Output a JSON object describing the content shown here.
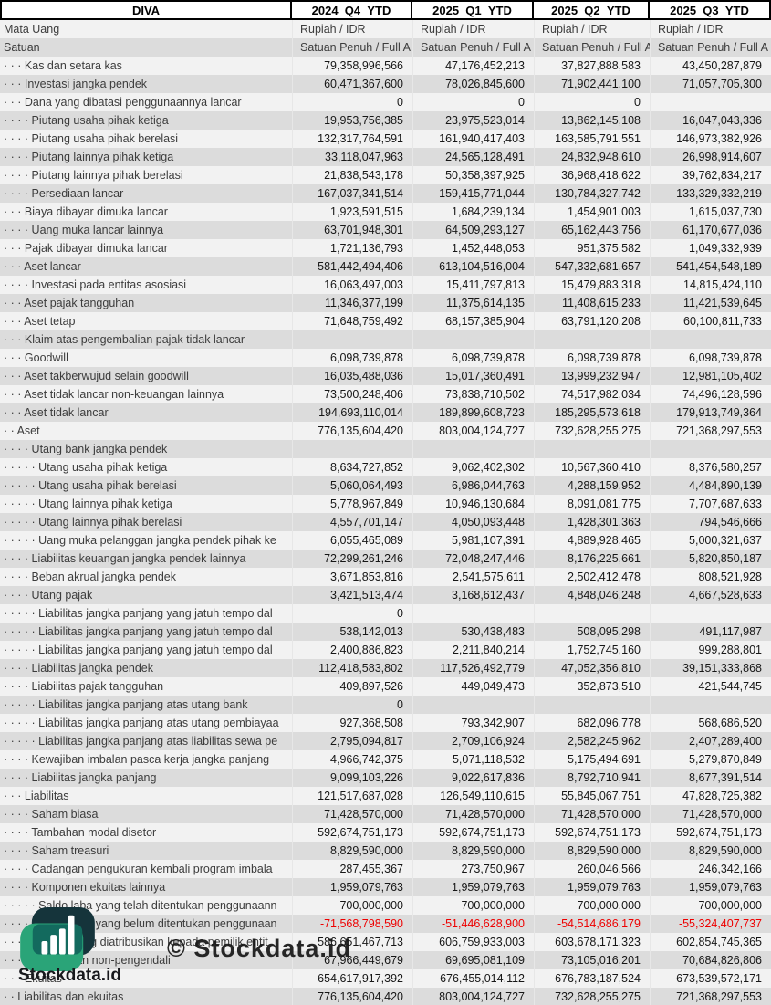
{
  "table": {
    "company": "DIVA",
    "periods": [
      "2024_Q4_YTD",
      "2025_Q1_YTD",
      "2025_Q2_YTD",
      "2025_Q3_YTD"
    ],
    "currency_row_label": "Mata Uang",
    "currency_value": "Rupiah / IDR",
    "unit_row_label": "Satuan",
    "unit_value": "Satuan Penuh / Full A",
    "rows": [
      {
        "indent": 3,
        "label": "Kas dan setara kas",
        "v": [
          "79,358,996,566",
          "47,176,452,213",
          "37,827,888,583",
          "43,450,287,879"
        ]
      },
      {
        "indent": 3,
        "label": "Investasi jangka pendek",
        "v": [
          "60,471,367,600",
          "78,026,845,600",
          "71,902,441,100",
          "71,057,705,300"
        ]
      },
      {
        "indent": 3,
        "label": "Dana yang dibatasi penggunaannya lancar",
        "v": [
          "0",
          "0",
          "0",
          ""
        ]
      },
      {
        "indent": 4,
        "label": "Piutang usaha pihak ketiga",
        "v": [
          "19,953,756,385",
          "23,975,523,014",
          "13,862,145,108",
          "16,047,043,336"
        ]
      },
      {
        "indent": 4,
        "label": "Piutang usaha pihak berelasi",
        "v": [
          "132,317,764,591",
          "161,940,417,403",
          "163,585,791,551",
          "146,973,382,926"
        ]
      },
      {
        "indent": 4,
        "label": "Piutang lainnya pihak ketiga",
        "v": [
          "33,118,047,963",
          "24,565,128,491",
          "24,832,948,610",
          "26,998,914,607"
        ]
      },
      {
        "indent": 4,
        "label": "Piutang lainnya pihak berelasi",
        "v": [
          "21,838,543,178",
          "50,358,397,925",
          "36,968,418,622",
          "39,762,834,217"
        ]
      },
      {
        "indent": 4,
        "label": "Persediaan lancar",
        "v": [
          "167,037,341,514",
          "159,415,771,044",
          "130,784,327,742",
          "133,329,332,219"
        ]
      },
      {
        "indent": 3,
        "label": "Biaya dibayar dimuka lancar",
        "v": [
          "1,923,591,515",
          "1,684,239,134",
          "1,454,901,003",
          "1,615,037,730"
        ]
      },
      {
        "indent": 4,
        "label": "Uang muka lancar lainnya",
        "v": [
          "63,701,948,301",
          "64,509,293,127",
          "65,162,443,756",
          "61,170,677,036"
        ]
      },
      {
        "indent": 3,
        "label": "Pajak dibayar dimuka lancar",
        "v": [
          "1,721,136,793",
          "1,452,448,053",
          "951,375,582",
          "1,049,332,939"
        ]
      },
      {
        "indent": 3,
        "label": "Aset lancar",
        "v": [
          "581,442,494,406",
          "613,104,516,004",
          "547,332,681,657",
          "541,454,548,189"
        ]
      },
      {
        "indent": 4,
        "label": "Investasi pada entitas asosiasi",
        "v": [
          "16,063,497,003",
          "15,411,797,813",
          "15,479,883,318",
          "14,815,424,110"
        ]
      },
      {
        "indent": 3,
        "label": "Aset pajak tangguhan",
        "v": [
          "11,346,377,199",
          "11,375,614,135",
          "11,408,615,233",
          "11,421,539,645"
        ]
      },
      {
        "indent": 3,
        "label": "Aset tetap",
        "v": [
          "71,648,759,492",
          "68,157,385,904",
          "63,791,120,208",
          "60,100,811,733"
        ]
      },
      {
        "indent": 3,
        "label": "Klaim atas pengembalian pajak tidak lancar",
        "v": [
          "",
          "",
          "",
          ""
        ]
      },
      {
        "indent": 3,
        "label": "Goodwill",
        "v": [
          "6,098,739,878",
          "6,098,739,878",
          "6,098,739,878",
          "6,098,739,878"
        ]
      },
      {
        "indent": 3,
        "label": "Aset takberwujud selain goodwill",
        "v": [
          "16,035,488,036",
          "15,017,360,491",
          "13,999,232,947",
          "12,981,105,402"
        ]
      },
      {
        "indent": 3,
        "label": "Aset tidak lancar non-keuangan lainnya",
        "v": [
          "73,500,248,406",
          "73,838,710,502",
          "74,517,982,034",
          "74,496,128,596"
        ]
      },
      {
        "indent": 3,
        "label": "Aset tidak lancar",
        "v": [
          "194,693,110,014",
          "189,899,608,723",
          "185,295,573,618",
          "179,913,749,364"
        ]
      },
      {
        "indent": 2,
        "label": "Aset",
        "v": [
          "776,135,604,420",
          "803,004,124,727",
          "732,628,255,275",
          "721,368,297,553"
        ]
      },
      {
        "indent": 4,
        "label": "Utang bank jangka pendek",
        "v": [
          "",
          "",
          "",
          ""
        ]
      },
      {
        "indent": 5,
        "label": "Utang usaha pihak ketiga",
        "v": [
          "8,634,727,852",
          "9,062,402,302",
          "10,567,360,410",
          "8,376,580,257"
        ]
      },
      {
        "indent": 5,
        "label": "Utang usaha pihak berelasi",
        "v": [
          "5,060,064,493",
          "6,986,044,763",
          "4,288,159,952",
          "4,484,890,139"
        ]
      },
      {
        "indent": 5,
        "label": "Utang lainnya pihak ketiga",
        "v": [
          "5,778,967,849",
          "10,946,130,684",
          "8,091,081,775",
          "7,707,687,633"
        ]
      },
      {
        "indent": 5,
        "label": "Utang lainnya pihak berelasi",
        "v": [
          "4,557,701,147",
          "4,050,093,448",
          "1,428,301,363",
          "794,546,666"
        ]
      },
      {
        "indent": 5,
        "label": "Uang muka pelanggan jangka pendek pihak ke",
        "v": [
          "6,055,465,089",
          "5,981,107,391",
          "4,889,928,465",
          "5,000,321,637"
        ]
      },
      {
        "indent": 4,
        "label": "Liabilitas keuangan jangka pendek lainnya",
        "v": [
          "72,299,261,246",
          "72,048,247,446",
          "8,176,225,661",
          "5,820,850,187"
        ]
      },
      {
        "indent": 4,
        "label": "Beban akrual jangka pendek",
        "v": [
          "3,671,853,816",
          "2,541,575,611",
          "2,502,412,478",
          "808,521,928"
        ]
      },
      {
        "indent": 4,
        "label": "Utang pajak",
        "v": [
          "3,421,513,474",
          "3,168,612,437",
          "4,848,046,248",
          "4,667,528,633"
        ]
      },
      {
        "indent": 5,
        "label": "Liabilitas jangka panjang yang jatuh tempo dal",
        "v": [
          "0",
          "",
          "",
          ""
        ]
      },
      {
        "indent": 5,
        "label": "Liabilitas jangka panjang yang jatuh tempo dal",
        "v": [
          "538,142,013",
          "530,438,483",
          "508,095,298",
          "491,117,987"
        ]
      },
      {
        "indent": 5,
        "label": "Liabilitas jangka panjang yang jatuh tempo dal",
        "v": [
          "2,400,886,823",
          "2,211,840,214",
          "1,752,745,160",
          "999,288,801"
        ]
      },
      {
        "indent": 4,
        "label": "Liabilitas jangka pendek",
        "v": [
          "112,418,583,802",
          "117,526,492,779",
          "47,052,356,810",
          "39,151,333,868"
        ]
      },
      {
        "indent": 4,
        "label": "Liabilitas pajak tangguhan",
        "v": [
          "409,897,526",
          "449,049,473",
          "352,873,510",
          "421,544,745"
        ]
      },
      {
        "indent": 5,
        "label": "Liabilitas jangka panjang atas utang bank",
        "v": [
          "0",
          "",
          "",
          ""
        ]
      },
      {
        "indent": 5,
        "label": "Liabilitas jangka panjang atas utang pembiayaa",
        "v": [
          "927,368,508",
          "793,342,907",
          "682,096,778",
          "568,686,520"
        ]
      },
      {
        "indent": 5,
        "label": "Liabilitas jangka panjang atas liabilitas sewa pe",
        "v": [
          "2,795,094,817",
          "2,709,106,924",
          "2,582,245,962",
          "2,407,289,400"
        ]
      },
      {
        "indent": 4,
        "label": "Kewajiban imbalan pasca kerja jangka panjang",
        "v": [
          "4,966,742,375",
          "5,071,118,532",
          "5,175,494,691",
          "5,279,870,849"
        ]
      },
      {
        "indent": 4,
        "label": "Liabilitas jangka panjang",
        "v": [
          "9,099,103,226",
          "9,022,617,836",
          "8,792,710,941",
          "8,677,391,514"
        ]
      },
      {
        "indent": 3,
        "label": "Liabilitas",
        "v": [
          "121,517,687,028",
          "126,549,110,615",
          "55,845,067,751",
          "47,828,725,382"
        ]
      },
      {
        "indent": 4,
        "label": "Saham biasa",
        "v": [
          "71,428,570,000",
          "71,428,570,000",
          "71,428,570,000",
          "71,428,570,000"
        ]
      },
      {
        "indent": 4,
        "label": "Tambahan modal disetor",
        "v": [
          "592,674,751,173",
          "592,674,751,173",
          "592,674,751,173",
          "592,674,751,173"
        ]
      },
      {
        "indent": 4,
        "label": "Saham treasuri",
        "v": [
          "8,829,590,000",
          "8,829,590,000",
          "8,829,590,000",
          "8,829,590,000"
        ]
      },
      {
        "indent": 4,
        "label": "Cadangan pengukuran kembali program imbala",
        "v": [
          "287,455,367",
          "273,750,967",
          "260,046,566",
          "246,342,166"
        ]
      },
      {
        "indent": 4,
        "label": "Komponen ekuitas lainnya",
        "v": [
          "1,959,079,763",
          "1,959,079,763",
          "1,959,079,763",
          "1,959,079,763"
        ]
      },
      {
        "indent": 5,
        "label": "Saldo laba yang telah ditentukan penggunaann",
        "v": [
          "700,000,000",
          "700,000,000",
          "700,000,000",
          "700,000,000"
        ]
      },
      {
        "indent": 5,
        "label": "Saldo laba yang belum ditentukan penggunaan",
        "v": [
          "-71,568,798,590",
          "-51,446,628,900",
          "-54,514,686,179",
          "-55,324,407,737"
        ]
      },
      {
        "indent": 4,
        "label": "Ekuitas yang diatribusikan kepada pemilik entit",
        "v": [
          "586,651,467,713",
          "606,759,933,003",
          "603,678,171,323",
          "602,854,745,365"
        ]
      },
      {
        "indent": 3,
        "label": "Kepentingan non-pengendali",
        "v": [
          "67,966,449,679",
          "69,695,081,109",
          "73,105,016,201",
          "70,684,826,806"
        ]
      },
      {
        "indent": 3,
        "label": "Ekuitas",
        "v": [
          "654,617,917,392",
          "676,455,014,112",
          "676,783,187,524",
          "673,539,572,171"
        ]
      },
      {
        "indent": 2,
        "label": "Liabilitas dan ekuitas",
        "v": [
          "776,135,604,420",
          "803,004,124,727",
          "732,628,255,275",
          "721,368,297,553"
        ]
      }
    ]
  },
  "watermark": {
    "brand": "Stockdata.id",
    "copyright": "© Stockdata.id"
  },
  "colors": {
    "stripe_light": "#f2f2f2",
    "stripe_dark": "#dcdcdc",
    "negative": "#ee0000",
    "logo_dark": "#15343b",
    "logo_green": "#2aa478",
    "logo_overlap": "#136a5e"
  }
}
